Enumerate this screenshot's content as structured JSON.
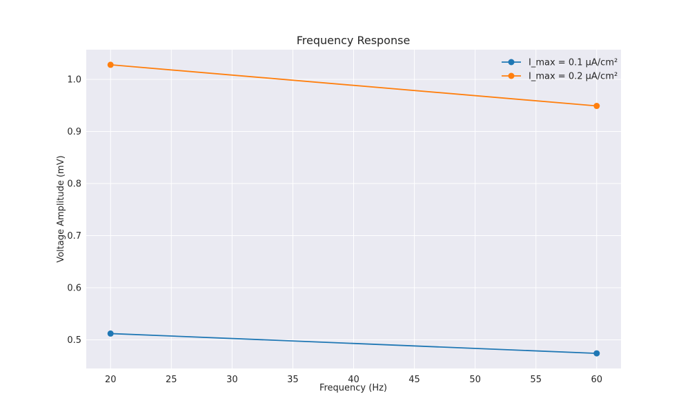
{
  "chart_data": {
    "type": "line",
    "title": "Frequency Response",
    "xlabel": "Frequency (Hz)",
    "ylabel": "Voltage Amplitude (mV)",
    "x": [
      20,
      60
    ],
    "xlim": [
      18,
      62
    ],
    "ylim": [
      0.445,
      1.057
    ],
    "xticks": [
      20,
      25,
      30,
      35,
      40,
      45,
      50,
      55,
      60
    ],
    "xtick_labels": [
      "20",
      "25",
      "30",
      "35",
      "40",
      "45",
      "50",
      "55",
      "60"
    ],
    "yticks": [
      0.5,
      0.6,
      0.7,
      0.8,
      0.9,
      1.0
    ],
    "ytick_labels": [
      "0.5",
      "0.6",
      "0.7",
      "0.8",
      "0.9",
      "1.0"
    ],
    "grid": true,
    "legend_position": "top-right",
    "series": [
      {
        "name": "I_max = 0.1 μA/cm²",
        "color": "#1f77b4",
        "values": [
          0.512,
          0.474
        ]
      },
      {
        "name": "I_max = 0.2 μA/cm²",
        "color": "#ff7f0e",
        "values": [
          1.028,
          0.949
        ]
      }
    ]
  }
}
